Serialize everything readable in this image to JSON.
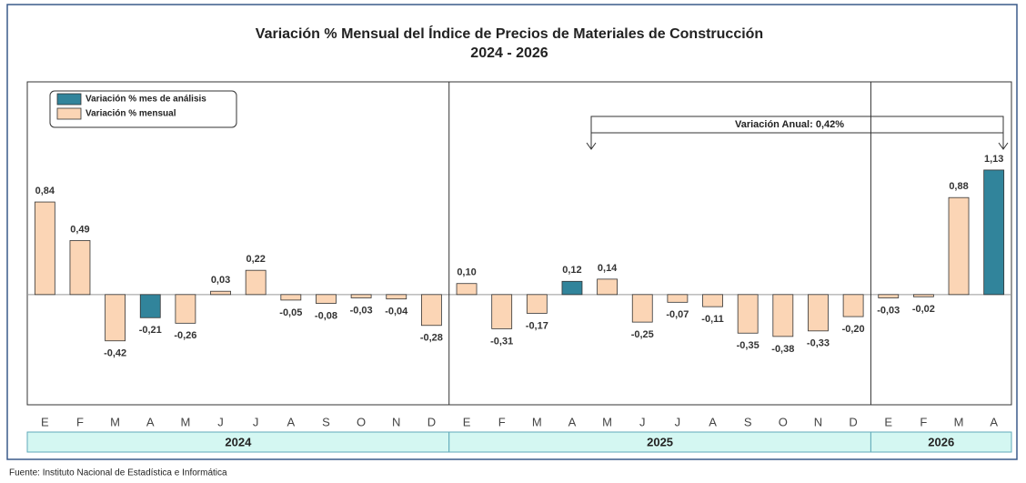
{
  "chart_data": {
    "type": "bar",
    "title": "Variación % Mensual del Índice de Precios de Materiales de Construcción",
    "subtitle": "2024 - 2026",
    "categories": [
      "E",
      "F",
      "M",
      "A",
      "M",
      "J",
      "J",
      "A",
      "S",
      "O",
      "N",
      "D",
      "E",
      "F",
      "M",
      "A",
      "M",
      "J",
      "J",
      "A",
      "S",
      "O",
      "N",
      "D",
      "E",
      "F",
      "M",
      "A"
    ],
    "groups": [
      "2024",
      "2025",
      "2026"
    ],
    "series": [
      {
        "name": "Variación % mes de análisis",
        "color": "#31849b",
        "values": [
          null,
          null,
          null,
          -0.21,
          null,
          null,
          null,
          null,
          null,
          null,
          null,
          null,
          null,
          null,
          null,
          0.12,
          null,
          null,
          null,
          null,
          null,
          null,
          null,
          null,
          null,
          null,
          null,
          1.13
        ],
        "value_labels": [
          null,
          null,
          null,
          "-0,21",
          null,
          null,
          null,
          null,
          null,
          null,
          null,
          null,
          null,
          null,
          null,
          "0,12",
          null,
          null,
          null,
          null,
          null,
          null,
          null,
          null,
          null,
          null,
          null,
          "1,13"
        ]
      },
      {
        "name": "Variación % mensual",
        "color": "#fbd5b5",
        "values": [
          0.84,
          0.49,
          -0.42,
          null,
          -0.26,
          0.03,
          0.22,
          -0.05,
          -0.08,
          -0.03,
          -0.04,
          -0.28,
          0.1,
          -0.31,
          -0.17,
          null,
          0.14,
          -0.25,
          -0.07,
          -0.11,
          -0.35,
          -0.38,
          -0.33,
          -0.2,
          -0.03,
          -0.02,
          0.88,
          null
        ],
        "value_labels": [
          "0,84",
          "0,49",
          "-0,42",
          null,
          "-0,26",
          "0,03",
          "0,22",
          "-0,05",
          "-0,08",
          "-0,03",
          "-0,04",
          "-0,28",
          "0,10",
          "-0,31",
          "-0,17",
          null,
          "0,14",
          "-0,25",
          "-0,07",
          "-0,11",
          "-0,35",
          "-0,38",
          "-0,33",
          "-0,20",
          "-0,03",
          "-0,02",
          "0,88",
          null
        ]
      }
    ],
    "ylim": [
      -1.0,
      1.93
    ],
    "annotation": "Variación Anual: 0,42%",
    "source": "Fuente: Instituto  Nacional de Estadística  e Informática"
  }
}
